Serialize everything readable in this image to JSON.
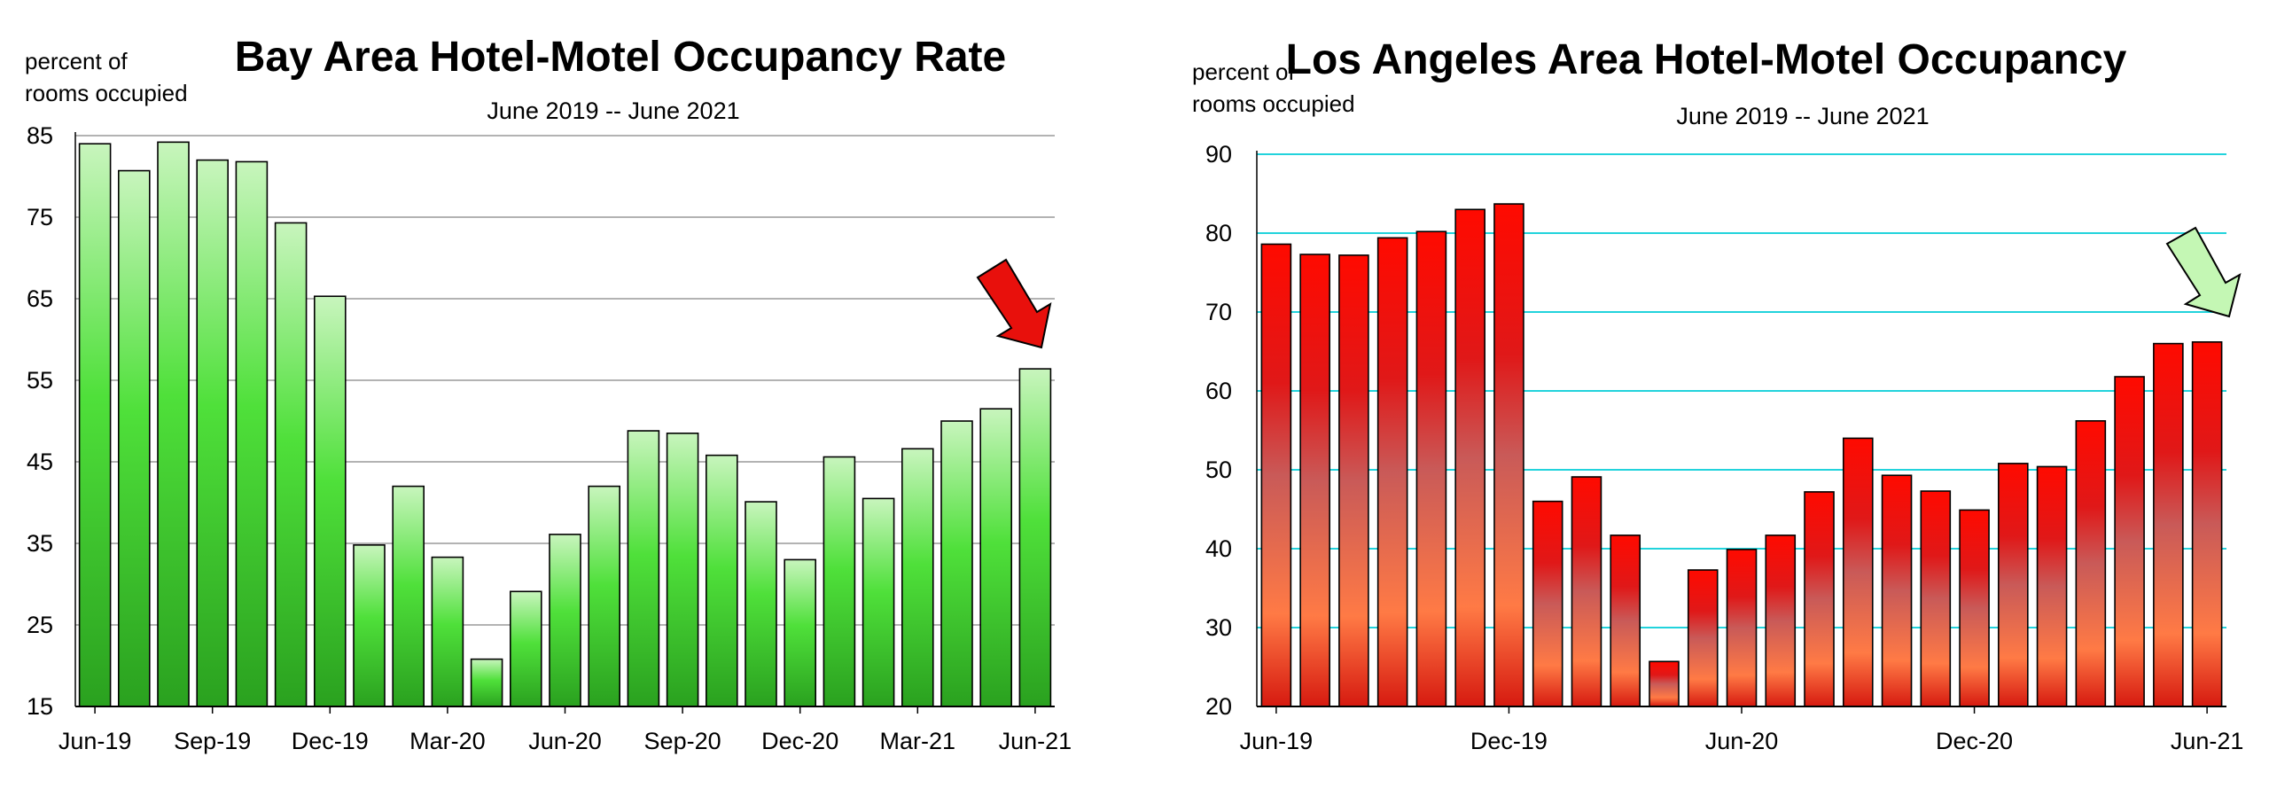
{
  "chart_data": [
    {
      "type": "bar",
      "title": "Bay Area Hotel-Motel Occupancy Rate",
      "subtitle": "June 2019 -- June 2021",
      "ylabel_line1": "percent of",
      "ylabel_line2": "rooms occupied",
      "ylim": [
        15,
        85
      ],
      "yticks": [
        15,
        25,
        35,
        45,
        55,
        65,
        75,
        85
      ],
      "grid": true,
      "grid_color": "#9a9a9a",
      "bar_color_top": "#c8f5bd",
      "bar_color_mid": "#4fe03a",
      "bar_color_bottom": "#2aa11f",
      "arrow": {
        "color": "#e8100c",
        "direction": "down-right",
        "target": "Jun-21"
      },
      "x_tick_labels": [
        "Jun-19",
        "Sep-19",
        "Dec-19",
        "Mar-20",
        "Jun-20",
        "Sep-20",
        "Dec-20",
        "Mar-21",
        "Jun-21"
      ],
      "categories": [
        "Jun-19",
        "Jul-19",
        "Aug-19",
        "Sep-19",
        "Oct-19",
        "Nov-19",
        "Dec-19",
        "Jan-20",
        "Feb-20",
        "Mar-20",
        "Apr-20",
        "May-20",
        "Jun-20",
        "Jul-20",
        "Aug-20",
        "Sep-20",
        "Oct-20",
        "Nov-20",
        "Dec-20",
        "Jan-21",
        "Feb-21",
        "Mar-21",
        "Apr-21",
        "May-21",
        "Jun-21"
      ],
      "values": [
        84,
        80.7,
        84.2,
        82,
        81.8,
        74.3,
        65.3,
        34.8,
        42,
        33.3,
        20.8,
        29.1,
        36.1,
        42,
        48.8,
        48.5,
        45.8,
        40.1,
        33,
        45.6,
        40.5,
        46.6,
        50,
        51.5,
        56.4
      ]
    },
    {
      "type": "bar",
      "title": "Los Angeles Area Hotel-Motel Occupancy",
      "subtitle": "June 2019 -- June 2021",
      "ylabel_line1": "percent of",
      "ylabel_line2": "rooms occupied",
      "ylim": [
        20,
        90
      ],
      "yticks": [
        20,
        30,
        40,
        50,
        60,
        70,
        80,
        90
      ],
      "grid": true,
      "grid_color": "#22d3dc",
      "bar_color_top": "#ff0a00",
      "bar_color_mid": "#c95a58",
      "bar_color_low": "#ff7a45",
      "bar_color_bottom": "#d61a10",
      "arrow": {
        "color": "#c4f7b4",
        "direction": "down-right",
        "target": "Jun-21"
      },
      "x_tick_labels": [
        "Jun-19",
        "Dec-19",
        "Jun-20",
        "Dec-20",
        "Jun-21"
      ],
      "categories": [
        "Jun-19",
        "Jul-19",
        "Aug-19",
        "Sep-19",
        "Oct-19",
        "Nov-19",
        "Dec-19",
        "Jan-20",
        "Feb-20",
        "Mar-20",
        "Apr-20",
        "May-20",
        "Jun-20",
        "Jul-20",
        "Aug-20",
        "Sep-20",
        "Oct-20",
        "Nov-20",
        "Dec-20",
        "Jan-21",
        "Feb-21",
        "Mar-21",
        "Apr-21",
        "May-21",
        "Jun-21"
      ],
      "values": [
        78.6,
        77.3,
        77.2,
        79.4,
        80.2,
        83,
        83.7,
        46,
        49.1,
        41.7,
        25.7,
        37.3,
        39.9,
        41.7,
        47.2,
        54,
        49.3,
        47.3,
        44.9,
        50.8,
        50.4,
        56.2,
        61.8,
        66,
        66.2
      ]
    }
  ]
}
